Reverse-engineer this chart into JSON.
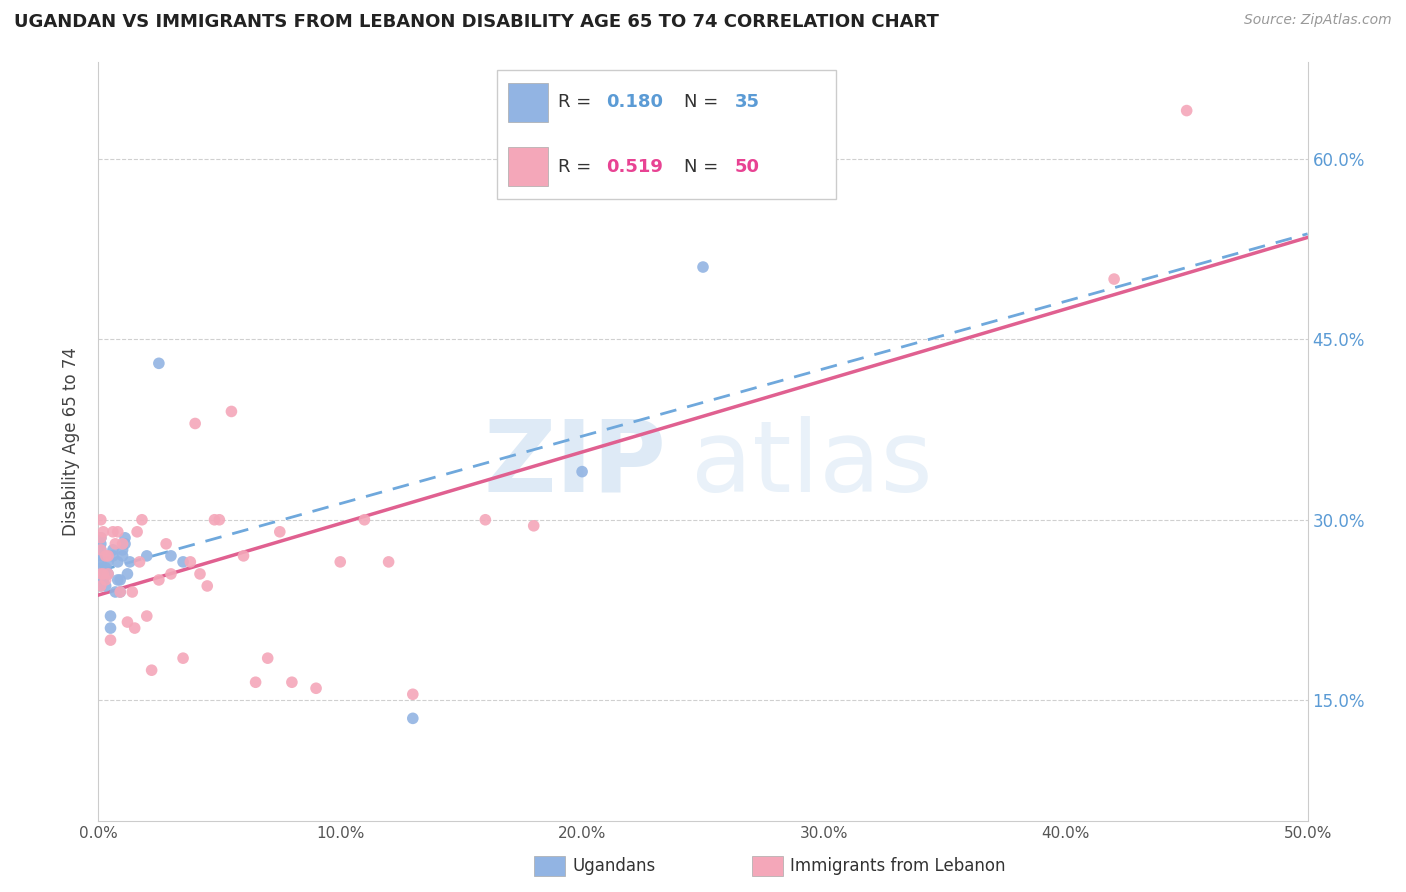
{
  "title": "UGANDAN VS IMMIGRANTS FROM LEBANON DISABILITY AGE 65 TO 74 CORRELATION CHART",
  "source": "Source: ZipAtlas.com",
  "ylabel": "Disability Age 65 to 74",
  "xmin": 0.0,
  "xmax": 0.5,
  "ymin": 0.05,
  "ymax": 0.68,
  "x_tick_labels": [
    "0.0%",
    "10.0%",
    "20.0%",
    "30.0%",
    "40.0%",
    "50.0%"
  ],
  "x_tick_values": [
    0.0,
    0.1,
    0.2,
    0.3,
    0.4,
    0.5
  ],
  "y_tick_labels_right": [
    "15.0%",
    "30.0%",
    "45.0%",
    "60.0%"
  ],
  "y_tick_values": [
    0.15,
    0.3,
    0.45,
    0.6
  ],
  "legend_label1": "Ugandans",
  "legend_label2": "Immigrants from Lebanon",
  "R1": "0.180",
  "N1": "35",
  "R2": "0.519",
  "N2": "50",
  "color1": "#92b4e3",
  "color2": "#f4a7b9",
  "line1_color": "#6fa8dc",
  "line2_color": "#e06090",
  "watermark_zip": "ZIP",
  "watermark_atlas": "atlas",
  "ugandan_x": [
    0.001,
    0.001,
    0.001,
    0.001,
    0.001,
    0.001,
    0.001,
    0.001,
    0.002,
    0.003,
    0.003,
    0.004,
    0.004,
    0.005,
    0.005,
    0.006,
    0.006,
    0.007,
    0.008,
    0.008,
    0.009,
    0.009,
    0.01,
    0.01,
    0.011,
    0.011,
    0.012,
    0.013,
    0.02,
    0.025,
    0.03,
    0.035,
    0.13,
    0.2,
    0.25
  ],
  "ugandan_y": [
    0.245,
    0.255,
    0.26,
    0.265,
    0.27,
    0.275,
    0.28,
    0.285,
    0.25,
    0.245,
    0.26,
    0.255,
    0.265,
    0.22,
    0.21,
    0.27,
    0.275,
    0.24,
    0.25,
    0.265,
    0.24,
    0.25,
    0.27,
    0.275,
    0.28,
    0.285,
    0.255,
    0.265,
    0.27,
    0.43,
    0.27,
    0.265,
    0.135,
    0.34,
    0.51
  ],
  "lebanon_x": [
    0.001,
    0.001,
    0.001,
    0.001,
    0.001,
    0.002,
    0.002,
    0.003,
    0.003,
    0.004,
    0.004,
    0.005,
    0.006,
    0.007,
    0.008,
    0.009,
    0.01,
    0.012,
    0.014,
    0.015,
    0.016,
    0.017,
    0.018,
    0.02,
    0.022,
    0.025,
    0.028,
    0.03,
    0.035,
    0.038,
    0.04,
    0.042,
    0.045,
    0.048,
    0.05,
    0.055,
    0.06,
    0.065,
    0.07,
    0.075,
    0.08,
    0.09,
    0.1,
    0.11,
    0.12,
    0.13,
    0.16,
    0.18,
    0.42,
    0.45
  ],
  "lebanon_y": [
    0.245,
    0.255,
    0.275,
    0.285,
    0.3,
    0.255,
    0.29,
    0.25,
    0.27,
    0.255,
    0.27,
    0.2,
    0.29,
    0.28,
    0.29,
    0.24,
    0.28,
    0.215,
    0.24,
    0.21,
    0.29,
    0.265,
    0.3,
    0.22,
    0.175,
    0.25,
    0.28,
    0.255,
    0.185,
    0.265,
    0.38,
    0.255,
    0.245,
    0.3,
    0.3,
    0.39,
    0.27,
    0.165,
    0.185,
    0.29,
    0.165,
    0.16,
    0.265,
    0.3,
    0.265,
    0.155,
    0.3,
    0.295,
    0.5,
    0.64
  ]
}
